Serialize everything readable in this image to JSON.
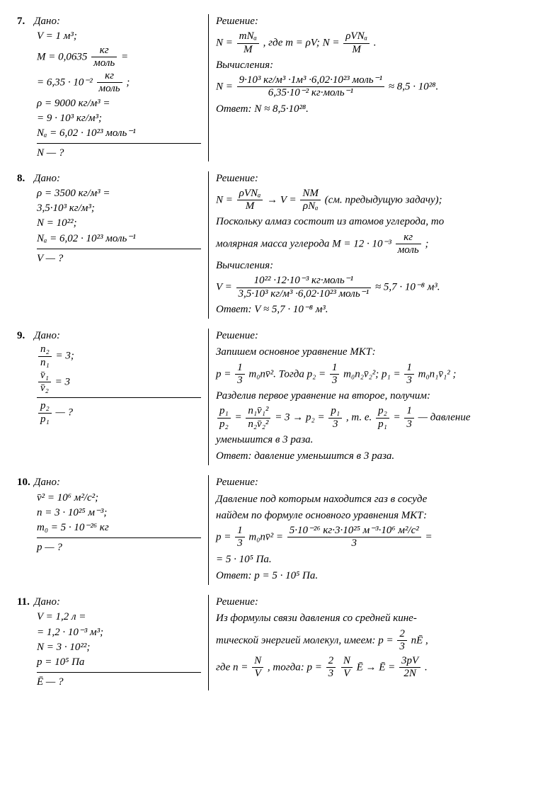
{
  "labels": {
    "dano": "Дано:",
    "reshenie": "Решение:",
    "vych": "Вычисления:",
    "otvet": "Ответ:"
  },
  "p7": {
    "num": "7.",
    "g1": "V = 1 м³;",
    "g2_lhs": "M = 0,0635",
    "g2_num": "кг",
    "g2_den": "моль",
    "g2_eq": "=",
    "g3_lhs": "= 6,35 · 10⁻²",
    "g3_num": "кг",
    "g3_den": "моль",
    "g3_end": ";",
    "g4": "ρ = 9000 кг/м³ =",
    "g5": "= 9 · 10³ кг/м³;",
    "g6": "Nₐ = 6,02 · 10²³ моль⁻¹",
    "unk": "N — ?",
    "s1_lhs": "N =",
    "s1_f1_num": "mNₐ",
    "s1_f1_den": "M",
    "s1_mid": ", где m = ρV; N =",
    "s1_f2_num": "ρVNₐ",
    "s1_f2_den": "M",
    "s1_end": ".",
    "s3_lhs": "N =",
    "s3_num": "9·10³ кг/м³ ·1м³ ·6,02·10²³ моль⁻¹",
    "s3_den": "6,35·10⁻² кг·моль⁻¹",
    "s3_end": "≈ 8,5 · 10²⁸.",
    "ans": "N ≈ 8,5·10²⁸."
  },
  "p8": {
    "num": "8.",
    "g1": "ρ = 3500 кг/м³ =",
    "g2": "3,5·10³ кг/м³;",
    "g3": "N = 10²²;",
    "g4": "Nₐ = 6,02 · 10²³ моль⁻¹",
    "unk": "V — ?",
    "s1_lhs": "N =",
    "s1_f1_num": "ρVNₐ",
    "s1_f1_den": "M",
    "s1_arrow": "→ V =",
    "s1_f2_num": "NM",
    "s1_f2_den": "ρNₐ",
    "s1_end": "(см. предыдущую задачу);",
    "s2a": "Поскольку алмаз состоит из атомов углерода, то",
    "s2b_lhs": "молярная масса углерода M = 12 · 10⁻³",
    "s2b_num": "кг",
    "s2b_den": "моль",
    "s2b_end": ";",
    "s4_lhs": "V =",
    "s4_num": "10²² ·12·10⁻³ кг·моль⁻¹",
    "s4_den": "3,5·10³ кг/м³ ·6,02·10²³ моль⁻¹",
    "s4_end": "≈ 5,7 · 10⁻⁸ м³.",
    "ans": "V ≈ 5,7 · 10⁻⁸ м³."
  },
  "p9": {
    "num": "9.",
    "g1_num": "n₂",
    "g1_den": "n₁",
    "g1_end": "= 3;",
    "g2_num": "v̄₁",
    "g2_den": "v̄₂",
    "g2_end": "= 3",
    "unk_num": "p₂",
    "unk_den": "p₁",
    "unk_end": "— ?",
    "s1": "Запишем основное уравнение МКТ:",
    "s2_lhs": "p =",
    "s2_f1_num": "1",
    "s2_f1_den": "3",
    "s2_mid1": "m₀nv̄². Тогда  p₂ =",
    "s2_f2_num": "1",
    "s2_f2_den": "3",
    "s2_mid2": "m₀n₂v̄₂²;  p₁ =",
    "s2_f3_num": "1",
    "s2_f3_den": "3",
    "s2_end": "m₀n₁v̄₁² ;",
    "s3": "Разделив первое уравнение на второе, получим:",
    "s4_f1_num": "p₁",
    "s4_f1_den": "p₂",
    "s4_eq1": "=",
    "s4_f2_num": "n₁v̄₁²",
    "s4_f2_den": "n₂v̄₂²",
    "s4_mid1": "= 3 → p₂ =",
    "s4_f3_num": "p₁",
    "s4_f3_den": "3",
    "s4_mid2": ", т. е.",
    "s4_f4_num": "p₂",
    "s4_f4_den": "p₁",
    "s4_eq2": "=",
    "s4_f5_num": "1",
    "s4_f5_den": "3",
    "s4_end": "— давление",
    "s5": "уменьшится в 3 раза.",
    "ans": "давление уменьшится в 3 раза."
  },
  "p10": {
    "num": "10.",
    "g1": "v̄² = 10⁶ м²/с²;",
    "g2": "n = 3 · 10²⁵ м⁻³;",
    "g3": "m₀ = 5 · 10⁻²⁶ кг",
    "unk": "p — ?",
    "s1": "Давление под которым находится газ в сосуде",
    "s2": "найдем по формуле основного уравнения МКТ:",
    "s3_lhs": "p =",
    "s3_f1_num": "1",
    "s3_f1_den": "3",
    "s3_mid": "m₀nv̄² =",
    "s3_f2_num": "5·10⁻²⁶ кг·3·10²⁵ м⁻³·10⁶ м²/с²",
    "s3_f2_den": "3",
    "s3_end": "=",
    "s4": "= 5 · 10⁵ Па.",
    "ans": "p = 5 · 10⁵ Па."
  },
  "p11": {
    "num": "11.",
    "g1": "V = 1,2 л =",
    "g2": "= 1,2 · 10⁻³ м³;",
    "g3": "N = 3 · 10²²;",
    "g4": "p = 10⁵ Па",
    "unk": "Ē — ?",
    "s1": "Из формулы связи давления со средней кине-",
    "s2_lhs": "тической энергией молекул, имеем:  p =",
    "s2_num": "2",
    "s2_den": "3",
    "s2_end": "nĒ ,",
    "s3_lhs": "где  n =",
    "s3_f1_num": "N",
    "s3_f1_den": "V",
    "s3_mid1": ", тогда:  p =",
    "s3_f2_num": "2",
    "s3_f2_den": "3",
    "s3_f3_num": "N",
    "s3_f3_den": "V",
    "s3_mid2": "Ē  →  Ē =",
    "s3_f4_num": "3pV",
    "s3_f4_den": "2N",
    "s3_end": "."
  }
}
